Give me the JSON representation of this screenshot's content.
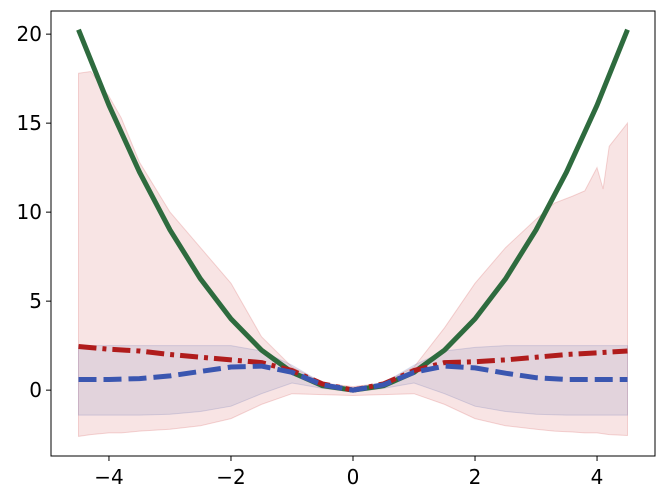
{
  "chart_data": {
    "type": "line",
    "title": "",
    "xlabel": "",
    "ylabel": "",
    "xlim": [
      -4.95,
      4.95
    ],
    "ylim": [
      -3.7,
      21.3
    ],
    "grid": false,
    "x_ticks": [
      -4,
      -2,
      0,
      2,
      4
    ],
    "y_ticks": [
      0,
      5,
      10,
      15,
      20
    ],
    "x_tick_labels": [
      "−4",
      "−2",
      "0",
      "2",
      "4"
    ],
    "y_tick_labels": [
      "0",
      "5",
      "10",
      "15",
      "20"
    ],
    "series": [
      {
        "color": "#2e6b3e",
        "style": "solid",
        "x": [
          -4.5,
          -4.0,
          -3.5,
          -3.0,
          -2.5,
          -2.0,
          -1.5,
          -1.0,
          -0.5,
          0.0,
          0.5,
          1.0,
          1.5,
          2.0,
          2.5,
          3.0,
          3.5,
          4.0,
          4.5
        ],
        "y": [
          20.25,
          16.0,
          12.25,
          9.0,
          6.25,
          4.0,
          2.25,
          1.0,
          0.25,
          0.0,
          0.25,
          1.0,
          2.25,
          4.0,
          6.25,
          9.0,
          12.25,
          16.0,
          20.25
        ]
      },
      {
        "color": "#b01c1c",
        "style": "dashdot",
        "x": [
          -4.5,
          -4.0,
          -3.5,
          -3.0,
          -2.5,
          -2.0,
          -1.5,
          -1.0,
          -0.5,
          0.0,
          0.5,
          1.0,
          1.5,
          2.0,
          2.5,
          3.0,
          3.5,
          4.0,
          4.5
        ],
        "y": [
          2.45,
          2.3,
          2.2,
          2.0,
          1.85,
          1.7,
          1.55,
          1.1,
          0.35,
          0.0,
          0.35,
          1.1,
          1.55,
          1.6,
          1.7,
          1.85,
          2.0,
          2.1,
          2.2
        ]
      },
      {
        "color": "#3a56b0",
        "style": "dashed",
        "x": [
          -4.5,
          -4.0,
          -3.5,
          -3.0,
          -2.5,
          -2.0,
          -1.5,
          -1.0,
          -0.5,
          0.0,
          0.5,
          1.0,
          1.5,
          2.0,
          2.5,
          3.0,
          3.5,
          4.0,
          4.5
        ],
        "y": [
          0.6,
          0.6,
          0.65,
          0.8,
          1.05,
          1.3,
          1.35,
          1.0,
          0.3,
          0.0,
          0.3,
          1.0,
          1.35,
          1.25,
          0.95,
          0.7,
          0.6,
          0.6,
          0.6
        ]
      }
    ],
    "bands": [
      {
        "color": "#d24a4a",
        "opacity": 0.15,
        "x": [
          -4.5,
          -4.3,
          -4.0,
          -3.8,
          -3.5,
          -3.0,
          -2.5,
          -2.0,
          -1.5,
          -1.0,
          -0.5,
          0.0,
          0.5,
          1.0,
          1.5,
          2.0,
          2.5,
          3.0,
          3.3,
          3.6,
          3.8,
          4.0,
          4.1,
          4.2,
          4.5
        ],
        "upper": [
          17.8,
          17.9,
          16.5,
          15.3,
          12.8,
          10.0,
          8.0,
          6.0,
          3.0,
          1.3,
          0.4,
          0.2,
          0.4,
          1.3,
          3.5,
          6.0,
          8.0,
          9.6,
          10.5,
          10.9,
          11.2,
          12.5,
          11.3,
          13.7,
          15.0
        ],
        "lower": [
          -2.6,
          -2.5,
          -2.4,
          -2.4,
          -2.3,
          -2.2,
          -2.0,
          -1.6,
          -0.8,
          -0.2,
          -0.25,
          -0.3,
          -0.25,
          -0.2,
          -0.8,
          -1.6,
          -2.0,
          -2.2,
          -2.3,
          -2.35,
          -2.4,
          -2.4,
          -2.45,
          -2.5,
          -2.55
        ]
      },
      {
        "color": "#4a5aa8",
        "opacity": 0.12,
        "x": [
          -4.5,
          -4.0,
          -3.5,
          -3.0,
          -2.5,
          -2.0,
          -1.5,
          -1.0,
          -0.5,
          0.0,
          0.5,
          1.0,
          1.5,
          2.0,
          2.5,
          3.0,
          3.5,
          4.0,
          4.5
        ],
        "upper": [
          2.5,
          2.5,
          2.5,
          2.5,
          2.5,
          2.5,
          2.2,
          1.4,
          0.4,
          0.1,
          0.4,
          1.4,
          2.2,
          2.4,
          2.5,
          2.5,
          2.5,
          2.5,
          2.5
        ],
        "lower": [
          -1.4,
          -1.4,
          -1.4,
          -1.35,
          -1.2,
          -0.9,
          -0.2,
          0.4,
          0.1,
          -0.1,
          0.1,
          0.4,
          -0.2,
          -0.9,
          -1.2,
          -1.35,
          -1.4,
          -1.4,
          -1.4
        ]
      }
    ]
  }
}
